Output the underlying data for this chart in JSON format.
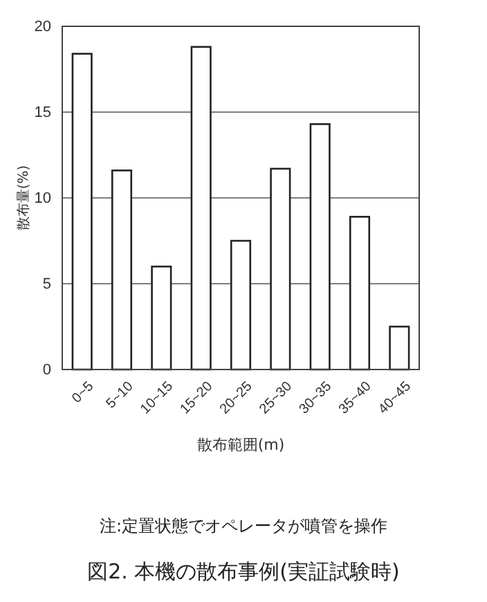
{
  "chart_data": {
    "type": "bar",
    "title": "図2. 本機の散布事例(実証試験時)",
    "xlabel": "散布範囲(m)",
    "ylabel": "散布量(%)",
    "annotations": [
      "注:定置状態でオペレータが噴管を操作"
    ],
    "categories": [
      "0~5",
      "5~10",
      "10~15",
      "15~20",
      "20~25",
      "25~30",
      "30~35",
      "35~40",
      "40~45"
    ],
    "values": [
      18.4,
      11.6,
      6.0,
      18.8,
      7.5,
      11.7,
      14.3,
      8.9,
      2.5
    ],
    "color": "#ffffff",
    "ylim": [
      0,
      20
    ],
    "yticks": [
      0,
      5,
      10,
      15,
      20
    ],
    "grid": "y"
  }
}
